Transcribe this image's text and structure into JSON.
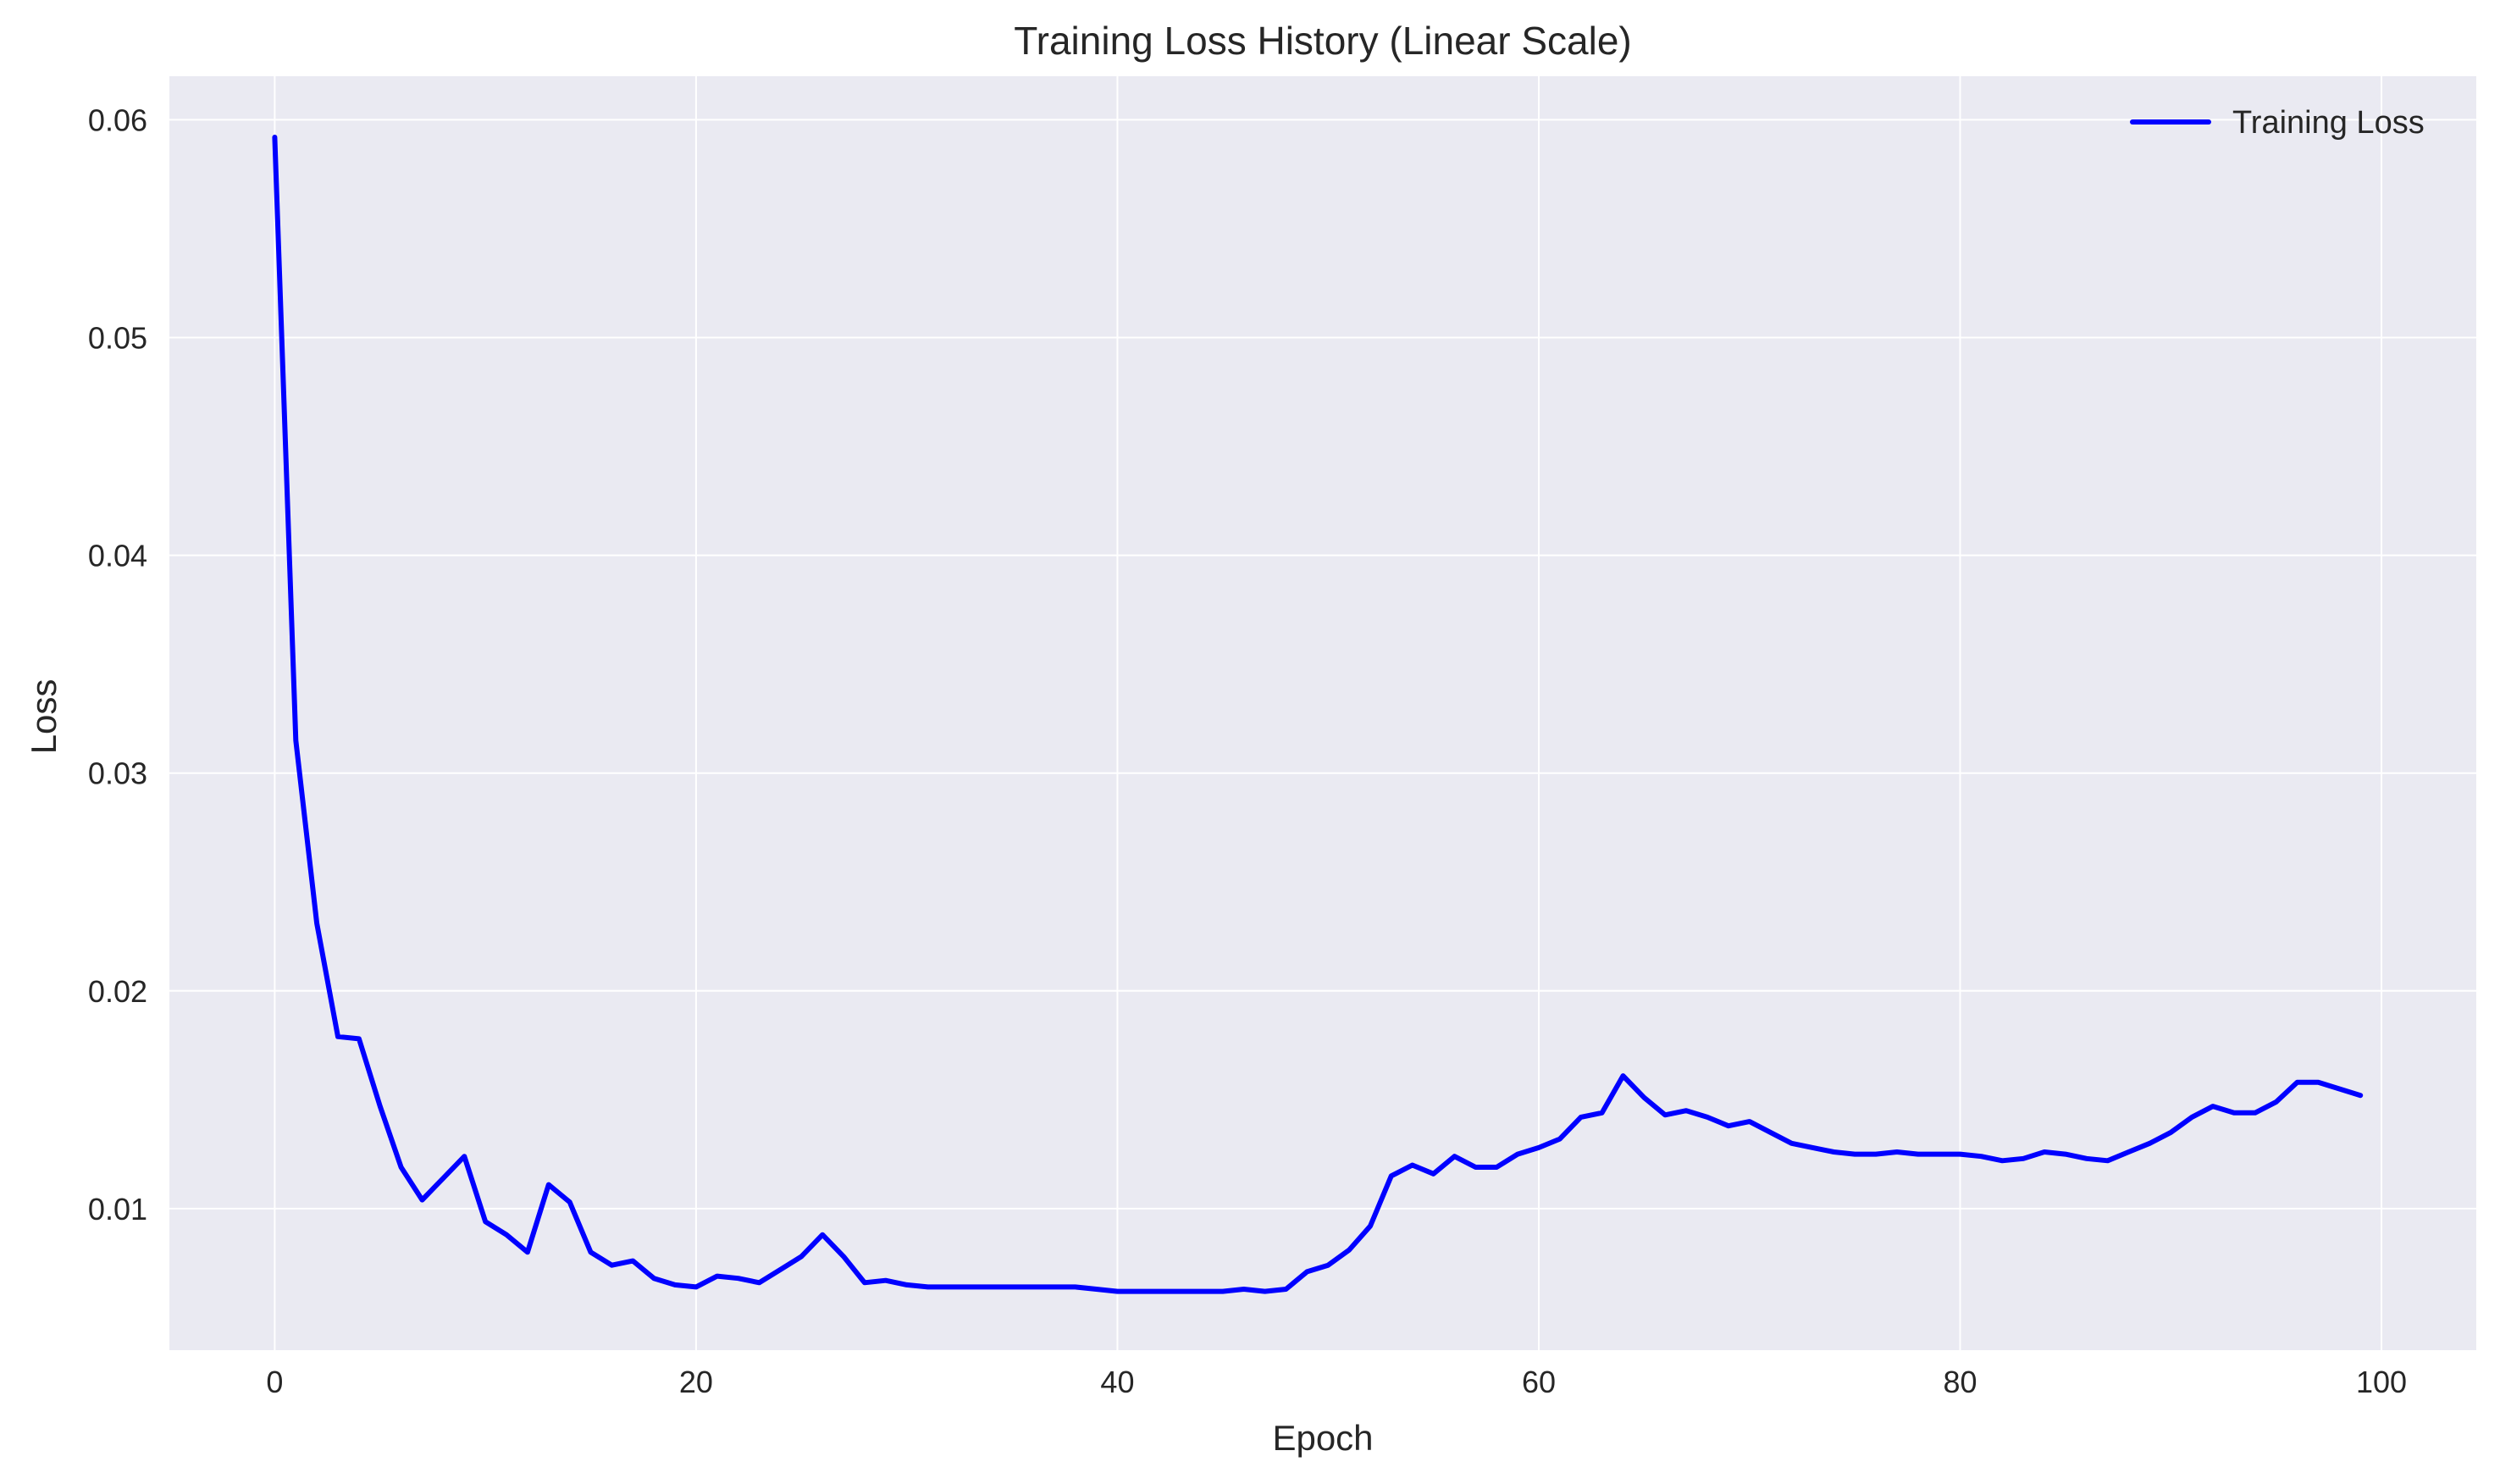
{
  "chart_data": {
    "type": "line",
    "title": "Training Loss History (Linear Scale)",
    "xlabel": "Epoch",
    "ylabel": "Loss",
    "xlim": [
      -5,
      104.5
    ],
    "ylim": [
      0.0035,
      0.062
    ],
    "xticks": [
      0,
      20,
      40,
      60,
      80,
      100
    ],
    "yticks": [
      0.01,
      0.02,
      0.03,
      0.04,
      0.05,
      0.06
    ],
    "ytick_labels": [
      "0.01",
      "0.02",
      "0.03",
      "0.04",
      "0.05",
      "0.06"
    ],
    "grid": true,
    "legend_position": "top-right",
    "colors": {
      "plot_bg": "#eaeaf2",
      "grid": "#ffffff",
      "line": "#0000ff"
    },
    "series": [
      {
        "name": "Training Loss",
        "x": [
          0,
          1,
          2,
          3,
          4,
          5,
          6,
          7,
          8,
          9,
          10,
          11,
          12,
          13,
          14,
          15,
          16,
          17,
          18,
          19,
          20,
          21,
          22,
          23,
          24,
          25,
          26,
          27,
          28,
          29,
          30,
          31,
          32,
          33,
          34,
          35,
          36,
          37,
          38,
          39,
          40,
          41,
          42,
          43,
          44,
          45,
          46,
          47,
          48,
          49,
          50,
          51,
          52,
          53,
          54,
          55,
          56,
          57,
          58,
          59,
          60,
          61,
          62,
          63,
          64,
          65,
          66,
          67,
          68,
          69,
          70,
          71,
          72,
          73,
          74,
          75,
          76,
          77,
          78,
          79,
          80,
          81,
          82,
          83,
          84,
          85,
          86,
          87,
          88,
          89,
          90,
          91,
          92,
          93,
          94,
          95,
          96,
          97,
          98,
          99
        ],
        "values": [
          0.0592,
          0.0315,
          0.0231,
          0.0179,
          0.0178,
          0.0147,
          0.0119,
          0.0104,
          0.0114,
          0.0124,
          0.0094,
          0.0088,
          0.008,
          0.0111,
          0.0103,
          0.008,
          0.0074,
          0.0076,
          0.0068,
          0.0065,
          0.0064,
          0.0069,
          0.0068,
          0.0066,
          0.0072,
          0.0078,
          0.0088,
          0.0078,
          0.0066,
          0.0067,
          0.0065,
          0.0064,
          0.0064,
          0.0064,
          0.0064,
          0.0064,
          0.0064,
          0.0064,
          0.0064,
          0.0063,
          0.0062,
          0.0062,
          0.0062,
          0.0062,
          0.0062,
          0.0062,
          0.0063,
          0.0062,
          0.0063,
          0.0071,
          0.0074,
          0.0081,
          0.0092,
          0.0115,
          0.012,
          0.0116,
          0.0124,
          0.0119,
          0.0119,
          0.0125,
          0.0128,
          0.0132,
          0.0142,
          0.0144,
          0.0161,
          0.0151,
          0.0143,
          0.0145,
          0.0142,
          0.0138,
          0.014,
          0.0135,
          0.013,
          0.0128,
          0.0126,
          0.0125,
          0.0125,
          0.0126,
          0.0125,
          0.0125,
          0.0125,
          0.0124,
          0.0122,
          0.0123,
          0.0126,
          0.0125,
          0.0123,
          0.0122,
          0.0126,
          0.013,
          0.0135,
          0.0142,
          0.0147,
          0.0144,
          0.0144,
          0.0149,
          0.0158,
          0.0158,
          0.0155,
          0.0152
        ]
      }
    ]
  }
}
